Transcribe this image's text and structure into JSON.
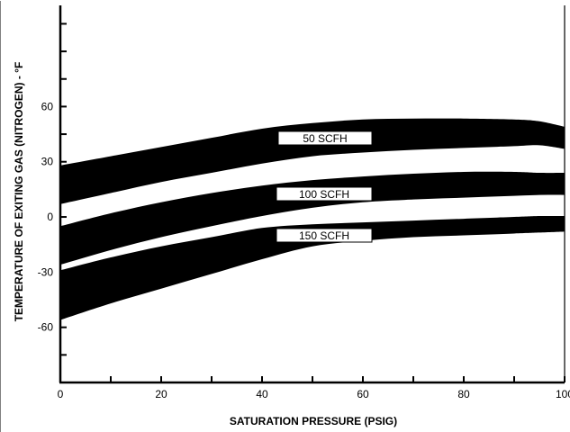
{
  "chart_data": {
    "type": "area",
    "title": "",
    "xlabel": "SATURATION PRESSURE (PSIG)",
    "ylabel": "TEMPERATURE OF EXITING GAS (NITROGEN) - °F",
    "xlim": [
      0,
      100
    ],
    "ylim": [
      -90,
      115
    ],
    "x_ticks": [
      "0",
      "20",
      "40",
      "60",
      "80",
      "100"
    ],
    "y_ticks": [
      "60",
      "30",
      "0",
      "-30",
      "-60"
    ],
    "grid": false,
    "series": [
      {
        "name": "50 SCFH",
        "x": [
          0,
          10,
          20,
          30,
          40,
          50,
          60,
          70,
          80,
          90,
          95,
          100
        ],
        "upper": [
          28,
          33,
          38,
          43,
          48,
          51,
          53,
          53.5,
          53.5,
          53,
          52,
          49
        ],
        "lower": [
          7,
          13,
          19,
          24,
          29,
          33,
          35,
          36.5,
          37.5,
          38.5,
          39,
          37
        ]
      },
      {
        "name": "100 SCFH",
        "x": [
          0,
          10,
          20,
          30,
          40,
          50,
          60,
          70,
          80,
          90,
          95,
          100
        ],
        "upper": [
          -5,
          2,
          8,
          13,
          17,
          20,
          22,
          23.5,
          24.5,
          24.5,
          24,
          24
        ]
      },
      {
        "name": "150 SCFH",
        "x": [
          0,
          10,
          20,
          30,
          40,
          50,
          60,
          70,
          80,
          90,
          95,
          100
        ],
        "upper": [
          -29,
          -22,
          -16,
          -11,
          -6,
          -4,
          -3,
          -2,
          -1,
          0,
          0.5,
          0.5
        ],
        "lower": [
          -56,
          -47,
          -39,
          -31,
          -23,
          -16,
          -13,
          -11,
          -10,
          -9,
          -8.5,
          -8
        ]
      }
    ],
    "shared_boundaries": [
      {
        "between": [
          "100 SCFH",
          "150 SCFH"
        ],
        "x": [
          0,
          10,
          20,
          30,
          40,
          50,
          60,
          70,
          80,
          90,
          95,
          100
        ],
        "values": [
          -27,
          -19,
          -12,
          -6,
          -0.5,
          4,
          7,
          8.5,
          9.5,
          10.5,
          11,
          11
        ]
      }
    ]
  }
}
